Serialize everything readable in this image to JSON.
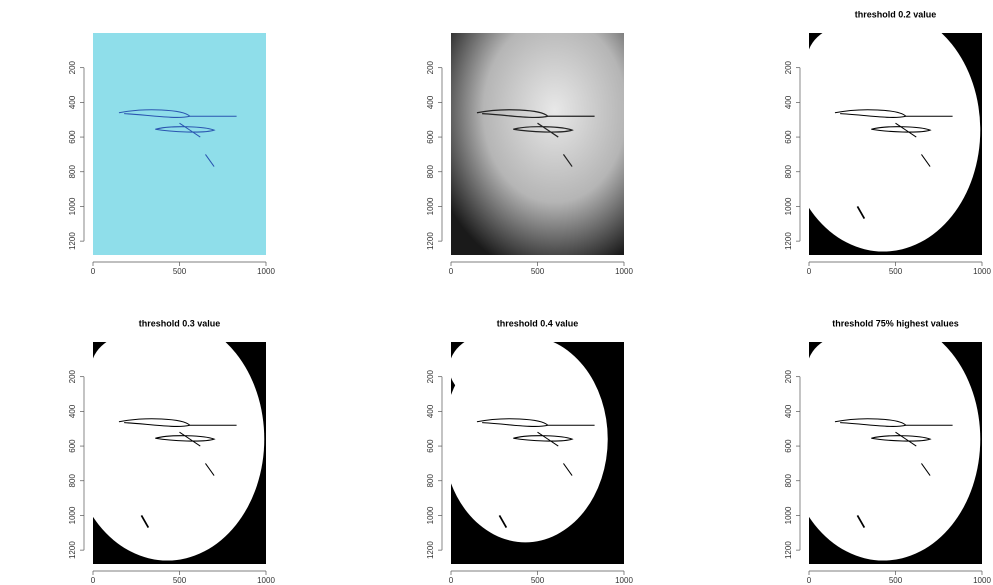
{
  "chart_data": [
    {
      "type": "image",
      "style": "photo",
      "xlim": [
        0,
        1000
      ],
      "ylim": [
        0,
        1280
      ],
      "y_reversed": true,
      "xticks": [
        0,
        500,
        1000
      ],
      "yticks": [
        200,
        400,
        600,
        800,
        1000,
        1200
      ]
    },
    {
      "type": "image",
      "style": "grayscale",
      "xlim": [
        0,
        1000
      ],
      "ylim": [
        0,
        1280
      ],
      "y_reversed": true,
      "xticks": [
        0,
        500,
        1000
      ],
      "yticks": [
        200,
        400,
        600,
        800,
        1000,
        1200
      ]
    },
    {
      "type": "image",
      "style": "binary",
      "title": "threshold 0.2 value",
      "xlim": [
        0,
        1000
      ],
      "ylim": [
        0,
        1280
      ],
      "y_reversed": true,
      "xticks": [
        0,
        500,
        1000
      ],
      "yticks": [
        200,
        400,
        600,
        800,
        1000,
        1200
      ]
    },
    {
      "type": "image",
      "style": "binary",
      "title": "threshold 0.3 value",
      "xlim": [
        0,
        1000
      ],
      "ylim": [
        0,
        1280
      ],
      "y_reversed": true,
      "xticks": [
        0,
        500,
        1000
      ],
      "yticks": [
        200,
        400,
        600,
        800,
        1000,
        1200
      ]
    },
    {
      "type": "image",
      "style": "binary",
      "title": "threshold 0.4 value",
      "xlim": [
        0,
        1000
      ],
      "ylim": [
        0,
        1280
      ],
      "y_reversed": true,
      "xticks": [
        0,
        500,
        1000
      ],
      "yticks": [
        200,
        400,
        600,
        800,
        1000,
        1200
      ]
    },
    {
      "type": "image",
      "style": "binary",
      "title": "threshold 75% highest values",
      "xlim": [
        0,
        1000
      ],
      "ylim": [
        0,
        1280
      ],
      "y_reversed": true,
      "xticks": [
        0,
        500,
        1000
      ],
      "yticks": [
        200,
        400,
        600,
        800,
        1000,
        1200
      ]
    }
  ]
}
